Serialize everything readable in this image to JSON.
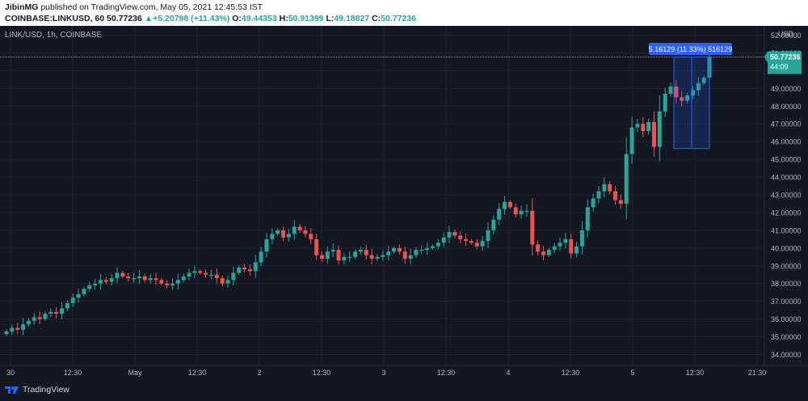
{
  "header": {
    "publisher": "JibinMG",
    "published_text": " published on TradingView.com, May 05, 2021 12:45:53 IST",
    "symbol_line_prefix": "COINBASE:LINKUSD, 60 ",
    "last": "50.77236",
    "change_arrow": "▲",
    "change": "+5.20798 (+11.43%)",
    "o_label": "O:",
    "o_value": "49.44353",
    "h_label": "H:",
    "h_value": "50.91399",
    "l_label": "L:",
    "l_value": "49.18827",
    "c_label": "C:",
    "c_value": "50.77236"
  },
  "chart_title": "LINK/USD, 1h, COINBASE",
  "currency_label": "USD",
  "price_tag": {
    "price": "50.77236",
    "countdown": "44:09"
  },
  "measure_label": "5.16129 (11.33%) 516129",
  "footer": {
    "brand": "TradingView"
  },
  "colors": {
    "up": "#26a69a",
    "down": "#ef5350",
    "background": "#131722",
    "measure": "#2962ff",
    "grid": "#1f2330"
  },
  "chart_data": {
    "type": "candlestick",
    "title": "LINK/USD, 1h, COINBASE",
    "ylabel": "USD",
    "ylim": [
      34,
      52
    ],
    "y_ticks": [
      "34.00000",
      "35.00000",
      "36.00000",
      "37.00000",
      "38.00000",
      "39.00000",
      "40.00000",
      "41.00000",
      "42.00000",
      "43.00000",
      "44.00000",
      "45.00000",
      "46.00000",
      "47.00000",
      "48.00000",
      "49.00000",
      "50.00000",
      "51.00000",
      "52.00000"
    ],
    "x_ticks": [
      "30",
      "12:30",
      "May",
      "12:30",
      "2",
      "12:30",
      "3",
      "12:30",
      "4",
      "12:30",
      "5",
      "12:30",
      "21:30"
    ],
    "last_price": 50.77236,
    "close_path": [
      35.3,
      35.5,
      35.4,
      35.7,
      35.9,
      36.1,
      36.0,
      36.3,
      36.4,
      36.3,
      36.6,
      36.9,
      37.2,
      37.4,
      37.7,
      37.9,
      38.0,
      38.2,
      38.1,
      38.3,
      38.6,
      38.4,
      38.3,
      38.3,
      38.4,
      38.2,
      38.3,
      38.2,
      38.0,
      37.9,
      38.0,
      38.2,
      38.4,
      38.6,
      38.7,
      38.6,
      38.5,
      38.5,
      38.3,
      38.0,
      38.2,
      38.6,
      38.9,
      38.8,
      38.7,
      39.2,
      39.8,
      40.5,
      40.8,
      41.0,
      40.6,
      40.8,
      41.2,
      41.0,
      40.8,
      40.5,
      39.6,
      39.4,
      39.8,
      39.9,
      39.3,
      39.5,
      39.5,
      39.8,
      39.9,
      39.6,
      39.4,
      39.5,
      39.6,
      39.8,
      40.0,
      39.8,
      39.4,
      39.6,
      39.9,
      39.9,
      40.0,
      40.1,
      40.3,
      40.6,
      40.9,
      40.7,
      40.5,
      40.4,
      40.3,
      40.1,
      40.4,
      41.0,
      41.6,
      42.2,
      42.6,
      42.3,
      41.9,
      42.1,
      42.1,
      40.2,
      39.8,
      39.6,
      39.9,
      40.1,
      40.3,
      40.5,
      39.7,
      40.1,
      41.0,
      42.3,
      42.8,
      43.2,
      43.6,
      43.2,
      42.7,
      42.5,
      45.3,
      46.8,
      47.0,
      46.6,
      47.1,
      45.7,
      47.7,
      48.7,
      49.1,
      48.5,
      48.3,
      48.6,
      48.9,
      49.3,
      49.6,
      50.77236
    ],
    "measure": {
      "change": 5.16129,
      "change_percent": 11.33,
      "ticks": 516129
    }
  }
}
